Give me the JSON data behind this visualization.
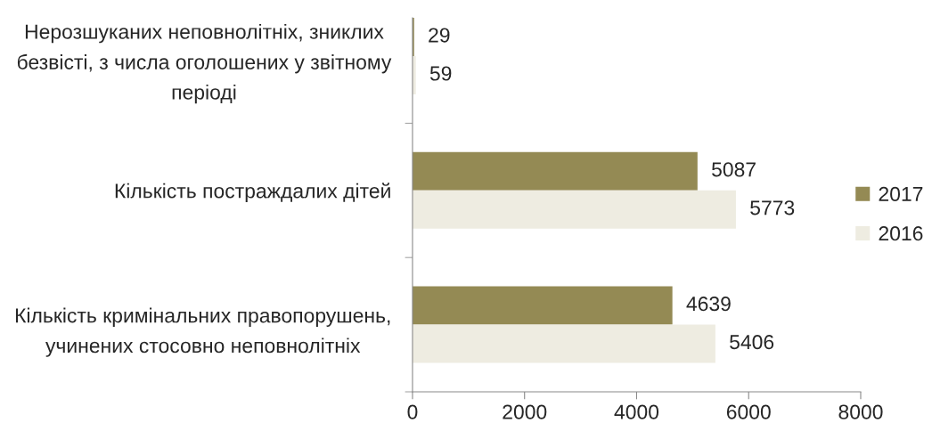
{
  "chart_data": {
    "type": "bar",
    "orientation": "horizontal",
    "categories": [
      "Нерозшуканих неповнолітніх, зниклих\nбезвісті, з числа оголошених у звітному\nперіоді",
      "Кількість постраждалих дітей",
      "Кількість кримінальних правопорушень,\nучинених стосовно неповнолітніх"
    ],
    "series": [
      {
        "name": "2017",
        "color": "#948a54",
        "values": [
          29,
          5087,
          4639
        ]
      },
      {
        "name": "2016",
        "color": "#eeece1",
        "values": [
          59,
          5773,
          5406
        ]
      }
    ],
    "xlim": [
      0,
      8000
    ],
    "xticks": [
      0,
      2000,
      4000,
      6000,
      8000
    ],
    "data_labels": true,
    "legend": "right"
  }
}
